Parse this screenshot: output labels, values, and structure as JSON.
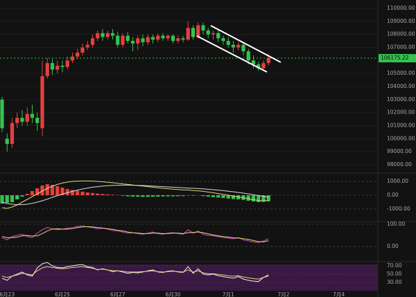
{
  "chart_data": [
    {
      "type": "candlestick",
      "ylim": [
        97360,
        110640
      ],
      "yticks": [
        {
          "value": 98000,
          "label": "98000.00"
        },
        {
          "value": 99000,
          "label": "99000.00"
        },
        {
          "value": 100000,
          "label": "100000.00"
        },
        {
          "value": 101000,
          "label": "101000.00"
        },
        {
          "value": 102000,
          "label": "102000.00"
        },
        {
          "value": 103000,
          "label": "103000.00"
        },
        {
          "value": 104000,
          "label": "104000.00"
        },
        {
          "value": 105000,
          "label": "105000.00"
        },
        {
          "value": 107000,
          "label": "107000.00"
        },
        {
          "value": 108000,
          "label": "108000.00"
        },
        {
          "value": 109000,
          "label": "109000.00"
        },
        {
          "value": 110000,
          "label": "110000.00"
        }
      ],
      "last_price": 106175.22,
      "up_color": "#e5403f",
      "down_color": "#35c24f",
      "open": [
        103000,
        100000,
        99600,
        101200,
        101600,
        101300,
        101900,
        101600,
        100800,
        104800,
        105800,
        105300,
        105600,
        105500,
        106000,
        106300,
        106600,
        107000,
        107200,
        107700,
        108100,
        107800,
        108100,
        107900,
        107200,
        107900,
        107500,
        107300,
        107700,
        107400,
        107800,
        107600,
        107900,
        107700,
        107900,
        107500,
        107700,
        107600,
        108500,
        107800,
        108700,
        108300,
        108000,
        108100,
        107700,
        107500,
        107200,
        107000,
        107200,
        106700,
        106000,
        105700,
        105400,
        105800
      ],
      "close": [
        100800,
        99600,
        101200,
        101600,
        101300,
        101900,
        101600,
        101200,
        104800,
        105800,
        105300,
        105600,
        105500,
        106000,
        106300,
        106600,
        107000,
        107200,
        107700,
        108100,
        107800,
        108100,
        107900,
        107200,
        107900,
        107500,
        107300,
        107700,
        107400,
        107800,
        107600,
        107900,
        107700,
        107900,
        107500,
        107700,
        107600,
        108500,
        107800,
        108700,
        108300,
        108000,
        108100,
        107700,
        107500,
        107200,
        107000,
        107200,
        106700,
        106000,
        105700,
        105400,
        105800,
        106200
      ],
      "high": [
        103200,
        100400,
        101600,
        102000,
        102200,
        102400,
        102600,
        102000,
        106000,
        106200,
        106100,
        106000,
        106000,
        106300,
        106600,
        106900,
        107300,
        107500,
        108000,
        108300,
        108400,
        108300,
        108400,
        108200,
        108100,
        108200,
        107800,
        107900,
        108000,
        108000,
        108000,
        108100,
        108100,
        108000,
        108000,
        107900,
        107900,
        109000,
        108700,
        108900,
        108900,
        108500,
        108300,
        108300,
        107900,
        107800,
        107500,
        107400,
        107400,
        106900,
        106400,
        105900,
        106000,
        106500
      ],
      "low": [
        100500,
        99000,
        99300,
        100800,
        101000,
        101000,
        101200,
        100600,
        100200,
        104600,
        104900,
        105000,
        105100,
        105300,
        105800,
        106100,
        106400,
        106800,
        107000,
        107500,
        107500,
        107600,
        107600,
        107000,
        107000,
        107300,
        106700,
        106800,
        107100,
        107200,
        107300,
        107400,
        107500,
        107500,
        107300,
        107300,
        107400,
        107500,
        107600,
        107700,
        108000,
        107700,
        107600,
        107400,
        107200,
        107000,
        106600,
        106800,
        106400,
        105700,
        105400,
        105200,
        105300,
        105600
      ]
    },
    {
      "type": "macd",
      "ylim": [
        -1900,
        1600
      ],
      "yticks": [
        {
          "value": 1000,
          "label": "1000.00"
        },
        {
          "value": 0,
          "label": "0.00"
        },
        {
          "value": -1000,
          "label": "-1000.00"
        }
      ],
      "up_color": "#e5403f",
      "down_color": "#35c24f",
      "values": [
        -600,
        -550,
        -500,
        -300,
        -100,
        100,
        300,
        500,
        700,
        800,
        750,
        650,
        550,
        450,
        380,
        320,
        260,
        200,
        160,
        120,
        90,
        60,
        40,
        20,
        -40,
        -80,
        -100,
        -110,
        -120,
        -120,
        -110,
        -100,
        -90,
        -80,
        -80,
        -70,
        -60,
        -20,
        -30,
        -10,
        -60,
        -100,
        -140,
        -170,
        -200,
        -240,
        -280,
        -300,
        -340,
        -400,
        -450,
        -500,
        -480,
        -440
      ],
      "series": [
        {
          "color": "#e6d77a",
          "values": [
            -900,
            -950,
            -850,
            -700,
            -500,
            -300,
            -100,
            100,
            300,
            500,
            650,
            780,
            880,
            950,
            1000,
            1020,
            1030,
            1030,
            1020,
            1000,
            970,
            940,
            900,
            860,
            820,
            780,
            740,
            700,
            660,
            620,
            580,
            540,
            500,
            470,
            440,
            410,
            380,
            380,
            340,
            320,
            280,
            230,
            180,
            120,
            60,
            0,
            -60,
            -120,
            -180,
            -250,
            -320,
            -380,
            -400,
            -380
          ]
        },
        {
          "color": "#d9d9d9",
          "values": [
            -500,
            -600,
            -650,
            -680,
            -680,
            -650,
            -580,
            -500,
            -400,
            -280,
            -150,
            -30,
            80,
            180,
            280,
            370,
            450,
            520,
            580,
            620,
            660,
            690,
            710,
            720,
            730,
            730,
            720,
            710,
            700,
            680,
            660,
            640,
            620,
            600,
            580,
            560,
            540,
            520,
            500,
            480,
            460,
            430,
            400,
            370,
            330,
            290,
            250,
            200,
            150,
            100,
            40,
            -20,
            -80,
            -140
          ]
        }
      ]
    },
    {
      "type": "line",
      "ylim": [
        -68,
        112
      ],
      "yticks": [
        {
          "value": 100,
          "label": "100.00"
        },
        {
          "value": 0,
          "label": "0.00"
        }
      ],
      "series": [
        {
          "color": "#d64fc4",
          "values": [
            40,
            30,
            45,
            50,
            55,
            45,
            40,
            60,
            75,
            85,
            80,
            75,
            78,
            82,
            85,
            90,
            92,
            88,
            85,
            80,
            82,
            78,
            72,
            70,
            65,
            60,
            62,
            58,
            55,
            60,
            65,
            58,
            55,
            60,
            62,
            58,
            55,
            75,
            60,
            70,
            55,
            50,
            48,
            45,
            40,
            38,
            35,
            40,
            30,
            25,
            20,
            18,
            25,
            35
          ]
        },
        {
          "color": "#e6d77a",
          "values": [
            45,
            40,
            40,
            42,
            48,
            50,
            47,
            48,
            58,
            70,
            78,
            80,
            78,
            78,
            80,
            85,
            88,
            89,
            88,
            85,
            83,
            80,
            77,
            73,
            70,
            65,
            62,
            60,
            58,
            58,
            60,
            60,
            58,
            58,
            60,
            60,
            58,
            62,
            63,
            65,
            62,
            57,
            52,
            48,
            45,
            42,
            39,
            38,
            35,
            32,
            27,
            22,
            21,
            26
          ]
        }
      ]
    },
    {
      "type": "line",
      "ylim": [
        3,
        80
      ],
      "yticks": [
        {
          "value": 70,
          "label": "70.00"
        },
        {
          "value": 50,
          "label": "50.00"
        },
        {
          "value": 30,
          "label": "30.00"
        }
      ],
      "xticks": [
        {
          "value": 1,
          "label": "6月23"
        },
        {
          "value": 12,
          "label": "6月25"
        },
        {
          "value": 23,
          "label": "6月27"
        },
        {
          "value": 34,
          "label": "6月30"
        },
        {
          "value": 45,
          "label": "7月1"
        },
        {
          "value": 56,
          "label": "7月2"
        },
        {
          "value": 67,
          "label": "7月4"
        }
      ],
      "series": [
        {
          "color": "#f2f2f2",
          "values": [
            40,
            35,
            45,
            50,
            55,
            48,
            45,
            65,
            75,
            78,
            70,
            66,
            65,
            68,
            70,
            72,
            73,
            68,
            66,
            60,
            63,
            60,
            56,
            58,
            55,
            52,
            54,
            53,
            55,
            58,
            60,
            55,
            54,
            57,
            58,
            55,
            54,
            68,
            52,
            63,
            50,
            48,
            50,
            46,
            44,
            42,
            40,
            44,
            38,
            35,
            33,
            32,
            42,
            48
          ]
        },
        {
          "color": "#e6d77a",
          "values": [
            45,
            42,
            45,
            48,
            52,
            50,
            48,
            58,
            65,
            68,
            66,
            64,
            63,
            64,
            66,
            67,
            68,
            66,
            64,
            61,
            62,
            60,
            58,
            58,
            57,
            55,
            55,
            55,
            56,
            57,
            58,
            56,
            55,
            56,
            57,
            56,
            55,
            60,
            55,
            58,
            53,
            51,
            51,
            49,
            48,
            46,
            45,
            46,
            43,
            41,
            39,
            38,
            42,
            45
          ]
        }
      ]
    }
  ]
}
